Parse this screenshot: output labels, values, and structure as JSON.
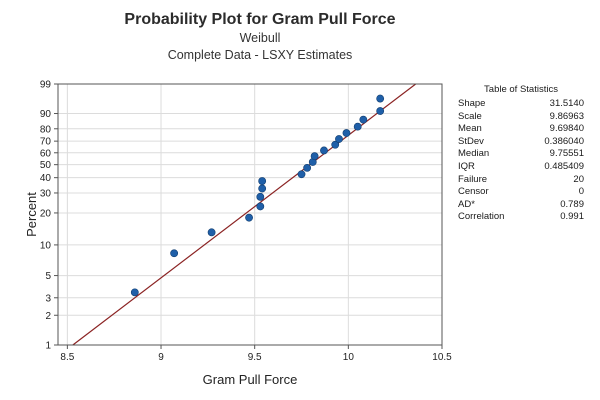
{
  "chart_data": {
    "type": "scatter",
    "title": "Probability Plot for Gram Pull Force",
    "subtitle": [
      "Weibull",
      "Complete Data - LSXY Estimates"
    ],
    "xlabel": "Gram Pull Force",
    "ylabel": "Percent",
    "xlim": [
      8.45,
      10.5
    ],
    "ylim_percent": [
      1,
      99
    ],
    "y_scale": "weibull-probability",
    "x_ticks": [
      8.5,
      9,
      9.5,
      10,
      10.5
    ],
    "x_tick_labels": [
      "8.5",
      "9",
      "9.5",
      "10",
      "10.5"
    ],
    "y_ticks": [
      1,
      2,
      3,
      5,
      10,
      20,
      30,
      40,
      50,
      60,
      70,
      80,
      90,
      99
    ],
    "y_tick_labels": [
      "1",
      "2",
      "3",
      "5",
      "10",
      "20",
      "30",
      "40",
      "50",
      "60",
      "70",
      "80",
      "90",
      "99"
    ],
    "grid": true,
    "points": [
      {
        "x": 8.86,
        "y": 3.4
      },
      {
        "x": 9.07,
        "y": 8.3
      },
      {
        "x": 9.27,
        "y": 13.2
      },
      {
        "x": 9.47,
        "y": 18.1
      },
      {
        "x": 9.53,
        "y": 22.9
      },
      {
        "x": 9.53,
        "y": 27.8
      },
      {
        "x": 9.54,
        "y": 32.7
      },
      {
        "x": 9.54,
        "y": 37.6
      },
      {
        "x": 9.75,
        "y": 42.5
      },
      {
        "x": 9.78,
        "y": 47.4
      },
      {
        "x": 9.81,
        "y": 52.2
      },
      {
        "x": 9.82,
        "y": 57.1
      },
      {
        "x": 9.87,
        "y": 62.0
      },
      {
        "x": 9.93,
        "y": 66.9
      },
      {
        "x": 9.95,
        "y": 71.8
      },
      {
        "x": 9.99,
        "y": 76.7
      },
      {
        "x": 10.05,
        "y": 81.6
      },
      {
        "x": 10.08,
        "y": 86.4
      },
      {
        "x": 10.17,
        "y": 91.3
      },
      {
        "x": 10.17,
        "y": 96.2
      }
    ],
    "fit_line": {
      "shape": 31.514,
      "scale": 9.86963
    },
    "colors": {
      "points": "#1f5fa8",
      "fit_line": "#8b2323",
      "grid": "#dcdcdc",
      "axes": "#555555"
    }
  },
  "stats_table": {
    "title": "Table of Statistics",
    "rows": [
      {
        "label": "Shape",
        "value": "31.5140"
      },
      {
        "label": "Scale",
        "value": "9.86963"
      },
      {
        "label": "Mean",
        "value": "9.69840"
      },
      {
        "label": "StDev",
        "value": "0.386040"
      },
      {
        "label": "Median",
        "value": "9.75551"
      },
      {
        "label": "IQR",
        "value": "0.485409"
      },
      {
        "label": "Failure",
        "value": "20"
      },
      {
        "label": "Censor",
        "value": "0"
      },
      {
        "label": "AD*",
        "value": "0.789"
      },
      {
        "label": "Correlation",
        "value": "0.991"
      }
    ]
  }
}
